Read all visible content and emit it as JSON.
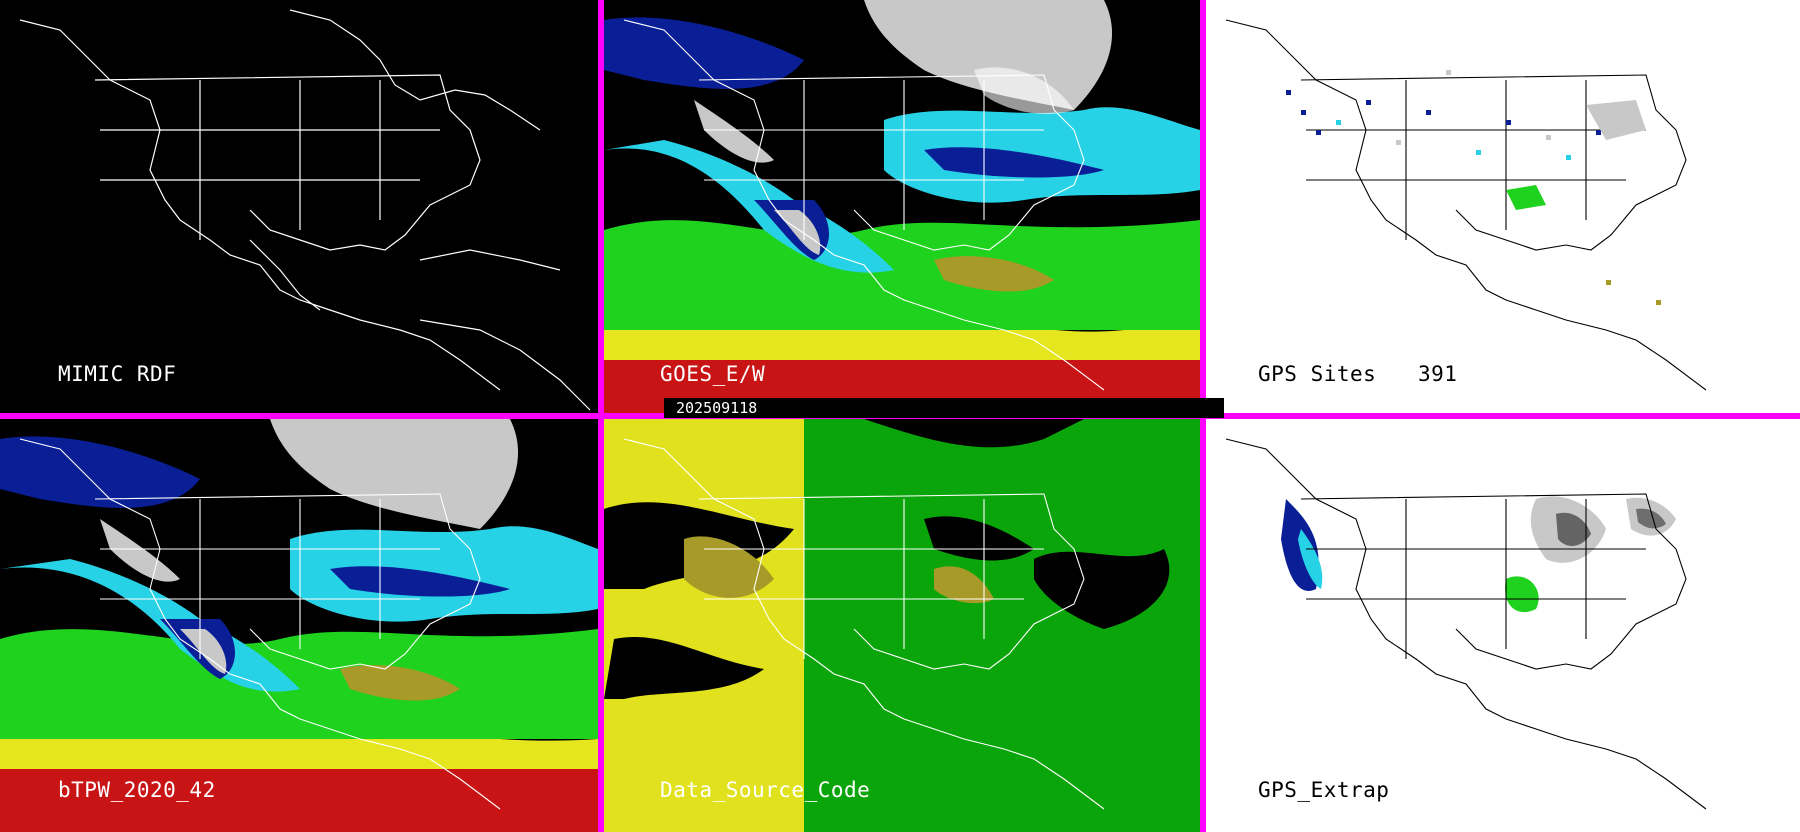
{
  "timestamp": "202509118",
  "panels": [
    {
      "label": "MIMIC RDF"
    },
    {
      "label": "GOES_E/W"
    },
    {
      "label": "GPS Sites",
      "count": "391"
    },
    {
      "label": "bTPW_2020_42"
    },
    {
      "label": "Data_Source_Code"
    },
    {
      "label": "GPS_Extrap"
    }
  ],
  "colors": {
    "divider": "#ff00ff",
    "dark_background": "#000000",
    "light_background": "#ffffff",
    "moisture_red": "#c81414",
    "moisture_yellow": "#e6e61e",
    "moisture_olive": "#a89a28",
    "moisture_green": "#1ed21e",
    "moisture_cyan": "#28d2e6",
    "moisture_blue": "#0a1e96",
    "moisture_gray": "#c8c8c8",
    "source_green": "#0aa50a",
    "source_yellow": "#e1e11e"
  }
}
